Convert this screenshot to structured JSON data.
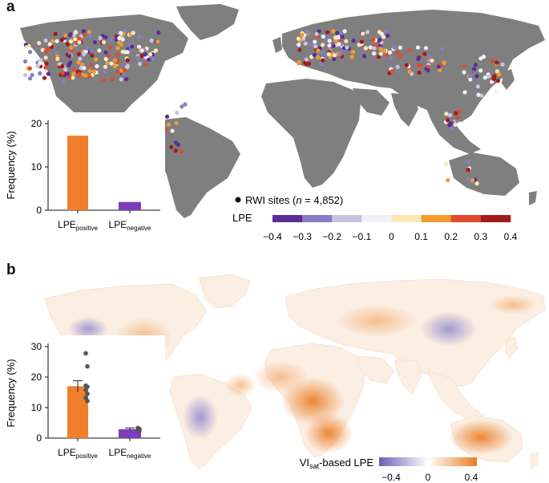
{
  "panel_a": {
    "letter": "a",
    "legend_marker_label": "RWI sites (",
    "legend_marker_n": "n",
    "legend_marker_value": " = 4,852)",
    "colorbar_label": "LPE",
    "colorbar_ticks": [
      "−0.4",
      "−0.3",
      "−0.2",
      "−0.1",
      "0",
      "0.1",
      "0.2",
      "0.3",
      "0.4"
    ],
    "colorbar_colors": [
      "#5a2d9a",
      "#8a7cc4",
      "#c9c2e2",
      "#f2f0f6",
      "#fbe7b6",
      "#f29b2e",
      "#e24a2c",
      "#a31a1a"
    ]
  },
  "panel_b": {
    "letter": "b",
    "colorbar_label_prefix": "VI",
    "colorbar_label_sub": "sat",
    "colorbar_label_suffix": "-based LPE",
    "colorbar_ticks": [
      "−0.4",
      "0",
      "0.4"
    ],
    "colorbar_colors": [
      "#6a5fb8",
      "#ffffff",
      "#ea7e22"
    ]
  },
  "map_colors": {
    "land_a": "#7f7f7f",
    "ocean": "#ffffff"
  },
  "chart_data": [
    {
      "type": "bar",
      "panel": "a",
      "ylabel": "Frequency (%)",
      "categories": [
        "LPE",
        "LPE"
      ],
      "category_subscripts": [
        "positive",
        "negative"
      ],
      "values": [
        17.2,
        1.9
      ],
      "colors": [
        "#f07f2c",
        "#7a3fb8"
      ],
      "ylim": [
        0,
        20
      ],
      "yticks": [
        "0",
        "10",
        "20"
      ]
    },
    {
      "type": "bar",
      "panel": "b",
      "ylabel": "Frequency (%)",
      "categories": [
        "LPE",
        "LPE"
      ],
      "category_subscripts": [
        "positive",
        "negative"
      ],
      "values": [
        17.0,
        2.9
      ],
      "errors": [
        1.8,
        0.4
      ],
      "colors": [
        "#f07f2c",
        "#7a3fb8"
      ],
      "points": [
        [
          27.8,
          23.5,
          17.2,
          16.8,
          15.8,
          14.5,
          13.2,
          12.2
        ],
        [
          3.3,
          3.0,
          2.7,
          2.5
        ]
      ],
      "ylim": [
        0,
        30
      ],
      "yticks": [
        "0",
        "10",
        "20",
        "30"
      ]
    }
  ]
}
